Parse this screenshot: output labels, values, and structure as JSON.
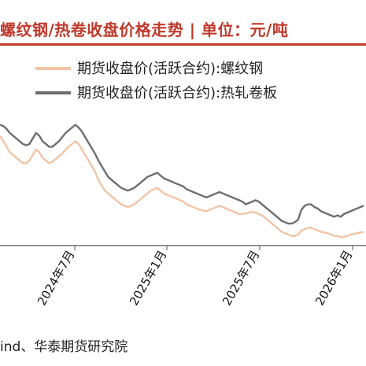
{
  "header": {
    "title": "螺纹钢/热卷收盘价格走势 | 单位：元/吨"
  },
  "footer": {
    "source": "ind、华泰期货研究院"
  },
  "colors": {
    "title": "#c0392b",
    "rebar": "#f2c4a6",
    "hrc": "#6e6e6e"
  },
  "chart_data": {
    "type": "line",
    "x_tick_labels": [
      "2024年7月",
      "2025年1月",
      "2025年7月",
      "2026年1月"
    ],
    "series": [
      {
        "name": "期货收盘价(活跃合约):螺纹钢",
        "color": "#f2c4a6",
        "values": [
          3800,
          3760,
          3720,
          3680,
          3660,
          3640,
          3620,
          3600,
          3600,
          3620,
          3660,
          3700,
          3680,
          3640,
          3620,
          3600,
          3610,
          3630,
          3650,
          3670,
          3700,
          3720,
          3740,
          3760,
          3740,
          3700,
          3660,
          3620,
          3580,
          3540,
          3480,
          3440,
          3400,
          3380,
          3360,
          3340,
          3320,
          3300,
          3290,
          3280,
          3290,
          3300,
          3320,
          3340,
          3360,
          3380,
          3400,
          3410,
          3420,
          3400,
          3380,
          3370,
          3360,
          3350,
          3340,
          3330,
          3320,
          3300,
          3290,
          3280,
          3270,
          3260,
          3255,
          3250,
          3260,
          3270,
          3280,
          3290,
          3280,
          3270,
          3260,
          3250,
          3240,
          3230,
          3230,
          3235,
          3240,
          3245,
          3240,
          3230,
          3220,
          3200,
          3180,
          3160,
          3140,
          3120,
          3100,
          3090,
          3080,
          3070,
          3070,
          3080,
          3110,
          3120,
          3130,
          3130,
          3120,
          3110,
          3100,
          3095,
          3090,
          3080,
          3070,
          3070,
          3060,
          3065,
          3070,
          3080,
          3085,
          3090,
          3095,
          3100
        ]
      },
      {
        "name": "期货收盘价(活跃合约):热轧卷板",
        "color": "#6e6e6e",
        "values": [
          3880,
          3870,
          3850,
          3820,
          3800,
          3780,
          3760,
          3740,
          3730,
          3740,
          3780,
          3820,
          3800,
          3760,
          3740,
          3720,
          3720,
          3740,
          3760,
          3790,
          3820,
          3840,
          3860,
          3880,
          3860,
          3830,
          3790,
          3750,
          3710,
          3670,
          3620,
          3580,
          3540,
          3500,
          3480,
          3460,
          3440,
          3420,
          3410,
          3400,
          3410,
          3420,
          3440,
          3460,
          3480,
          3500,
          3510,
          3520,
          3530,
          3510,
          3490,
          3480,
          3470,
          3460,
          3450,
          3440,
          3430,
          3410,
          3400,
          3390,
          3380,
          3370,
          3360,
          3350,
          3360,
          3370,
          3380,
          3390,
          3380,
          3370,
          3360,
          3350,
          3340,
          3330,
          3320,
          3300,
          3310,
          3320,
          3330,
          3320,
          3300,
          3280,
          3260,
          3240,
          3220,
          3200,
          3180,
          3170,
          3160,
          3160,
          3170,
          3190,
          3260,
          3290,
          3300,
          3300,
          3280,
          3270,
          3250,
          3240,
          3230,
          3220,
          3210,
          3220,
          3210,
          3230,
          3240,
          3250,
          3260,
          3270,
          3280,
          3290
        ]
      }
    ],
    "xlabel": "",
    "ylabel": "",
    "grid": false,
    "legend": "top"
  }
}
